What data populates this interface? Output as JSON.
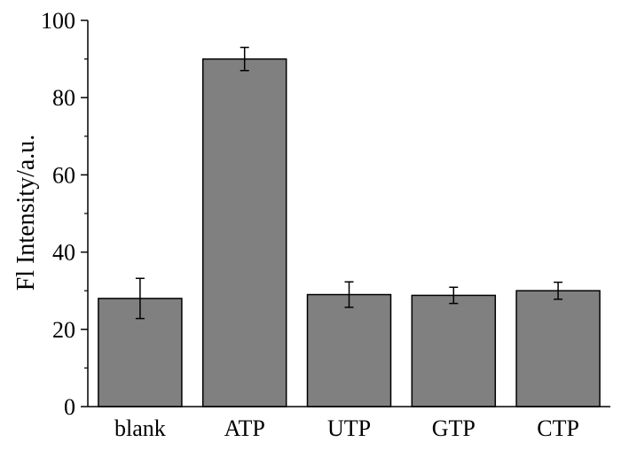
{
  "chart_data": {
    "type": "bar",
    "categories": [
      "blank",
      "ATP",
      "UTP",
      "GTP",
      "CTP"
    ],
    "values": [
      28,
      90,
      29,
      28.8,
      30
    ],
    "errors": [
      5.2,
      3.0,
      3.3,
      2.1,
      2.2
    ],
    "xlabel": "",
    "ylabel": "Fl Intensity/a.u.",
    "ylim": [
      0,
      100
    ],
    "yticks": [
      0,
      20,
      40,
      60,
      80,
      100
    ],
    "yticks_minor": [
      10,
      30,
      50,
      70,
      90
    ],
    "bar_color": "#808080",
    "bar_edge_color": "#000000",
    "grid": false,
    "legend": "none"
  }
}
